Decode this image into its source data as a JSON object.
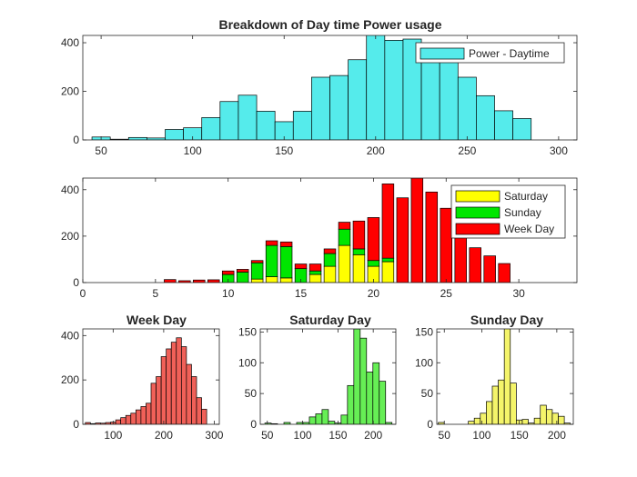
{
  "chart_data": [
    {
      "id": "top",
      "type": "bar",
      "title": "Breakdown of Day time Power usage",
      "xlim": [
        40,
        310
      ],
      "ylim": [
        0,
        430
      ],
      "xticks": [
        50,
        100,
        150,
        200,
        250,
        300
      ],
      "yticks": [
        0,
        200,
        400
      ],
      "bin_width": 10,
      "bins": [
        50,
        60,
        70,
        80,
        90,
        100,
        110,
        120,
        130,
        140,
        150,
        160,
        170,
        180,
        190,
        200,
        210,
        220,
        230,
        240,
        250,
        260,
        270,
        280,
        290
      ],
      "series": [
        {
          "name": "Power - Daytime",
          "color": "#55ebeb",
          "values": [
            12,
            3,
            10,
            8,
            43,
            50,
            92,
            158,
            184,
            118,
            75,
            118,
            258,
            265,
            330,
            435,
            410,
            415,
            375,
            330,
            258,
            182,
            120,
            88,
            0
          ]
        }
      ],
      "legend": {
        "location": "top-right",
        "entries": [
          "Power - Daytime"
        ]
      },
      "grid": false
    },
    {
      "id": "middle",
      "type": "bar",
      "stacked": true,
      "title": "",
      "xlim": [
        0,
        34
      ],
      "ylim": [
        0,
        450
      ],
      "xticks": [
        0,
        5,
        10,
        15,
        20,
        25,
        30
      ],
      "yticks": [
        0,
        200,
        400
      ],
      "x": [
        6,
        7,
        8,
        9,
        10,
        11,
        12,
        13,
        14,
        15,
        16,
        17,
        18,
        19,
        20,
        21,
        22,
        23,
        24,
        25,
        26,
        27,
        28,
        29
      ],
      "series": [
        {
          "name": "Saturday",
          "color": "#ffff00",
          "values": [
            0,
            0,
            0,
            0,
            0,
            0,
            15,
            25,
            20,
            0,
            35,
            70,
            160,
            120,
            70,
            90,
            0,
            0,
            0,
            0,
            0,
            0,
            0,
            0
          ]
        },
        {
          "name": "Sunday",
          "color": "#00e600",
          "values": [
            0,
            0,
            0,
            0,
            35,
            45,
            70,
            135,
            135,
            60,
            15,
            55,
            70,
            25,
            25,
            15,
            0,
            0,
            0,
            0,
            0,
            0,
            0,
            0
          ]
        },
        {
          "name": "Week Day",
          "color": "#ff0000",
          "values": [
            13,
            8,
            11,
            12,
            15,
            12,
            10,
            20,
            20,
            20,
            30,
            20,
            30,
            120,
            185,
            320,
            365,
            450,
            390,
            320,
            215,
            150,
            115,
            82
          ]
        }
      ],
      "legend": {
        "location": "top-right",
        "entries": [
          "Saturday",
          "Sunday",
          "Week Day"
        ]
      },
      "grid": false
    },
    {
      "id": "weekday",
      "type": "bar",
      "title": "Week Day",
      "xlim": [
        40,
        310
      ],
      "ylim": [
        0,
        430
      ],
      "xticks": [
        100,
        200,
        300
      ],
      "yticks": [
        0,
        200,
        400
      ],
      "bin_width": 10,
      "bins": [
        50,
        60,
        70,
        80,
        90,
        100,
        110,
        120,
        130,
        140,
        150,
        160,
        170,
        180,
        190,
        200,
        210,
        220,
        230,
        240,
        250,
        260,
        270,
        280
      ],
      "series": [
        {
          "name": "Week Day",
          "color": "#f06058",
          "values": [
            8,
            3,
            6,
            5,
            8,
            10,
            20,
            30,
            40,
            50,
            65,
            80,
            95,
            185,
            215,
            305,
            340,
            370,
            390,
            350,
            270,
            215,
            120,
            68
          ]
        }
      ],
      "grid": false
    },
    {
      "id": "saturday",
      "type": "bar",
      "title": "Saturday Day",
      "xlim": [
        40,
        232
      ],
      "ylim": [
        0,
        155
      ],
      "xticks": [
        50,
        100,
        150,
        200
      ],
      "yticks": [
        0,
        50,
        100,
        150
      ],
      "bin_width": 9,
      "bins": [
        42,
        51,
        60,
        69,
        78,
        87,
        96,
        105,
        114,
        123,
        132,
        141,
        150,
        159,
        168,
        177,
        186,
        195,
        204,
        213,
        222
      ],
      "series": [
        {
          "name": "Saturday Day",
          "color": "#66ee55",
          "values": [
            0,
            2,
            1,
            0,
            3,
            0,
            3,
            3,
            12,
            17,
            24,
            5,
            2,
            15,
            63,
            155,
            140,
            85,
            100,
            70,
            3
          ]
        }
      ],
      "grid": false
    },
    {
      "id": "sunday",
      "type": "bar",
      "title": "Sunday Day",
      "xlim": [
        40,
        222
      ],
      "ylim": [
        0,
        155
      ],
      "xticks": [
        50,
        100,
        150,
        200
      ],
      "yticks": [
        0,
        50,
        100,
        150
      ],
      "bin_width": 8,
      "bins": [
        46,
        54,
        62,
        70,
        78,
        86,
        94,
        102,
        110,
        118,
        126,
        134,
        142,
        150,
        158,
        166,
        174,
        182,
        190,
        198,
        206,
        214
      ],
      "series": [
        {
          "name": "Sunday Day",
          "color": "#f4f46a",
          "values": [
            3,
            0,
            0,
            0,
            0,
            5,
            10,
            18,
            37,
            62,
            72,
            158,
            67,
            7,
            8,
            2,
            10,
            31,
            24,
            18,
            13,
            2
          ]
        }
      ],
      "grid": false
    }
  ]
}
